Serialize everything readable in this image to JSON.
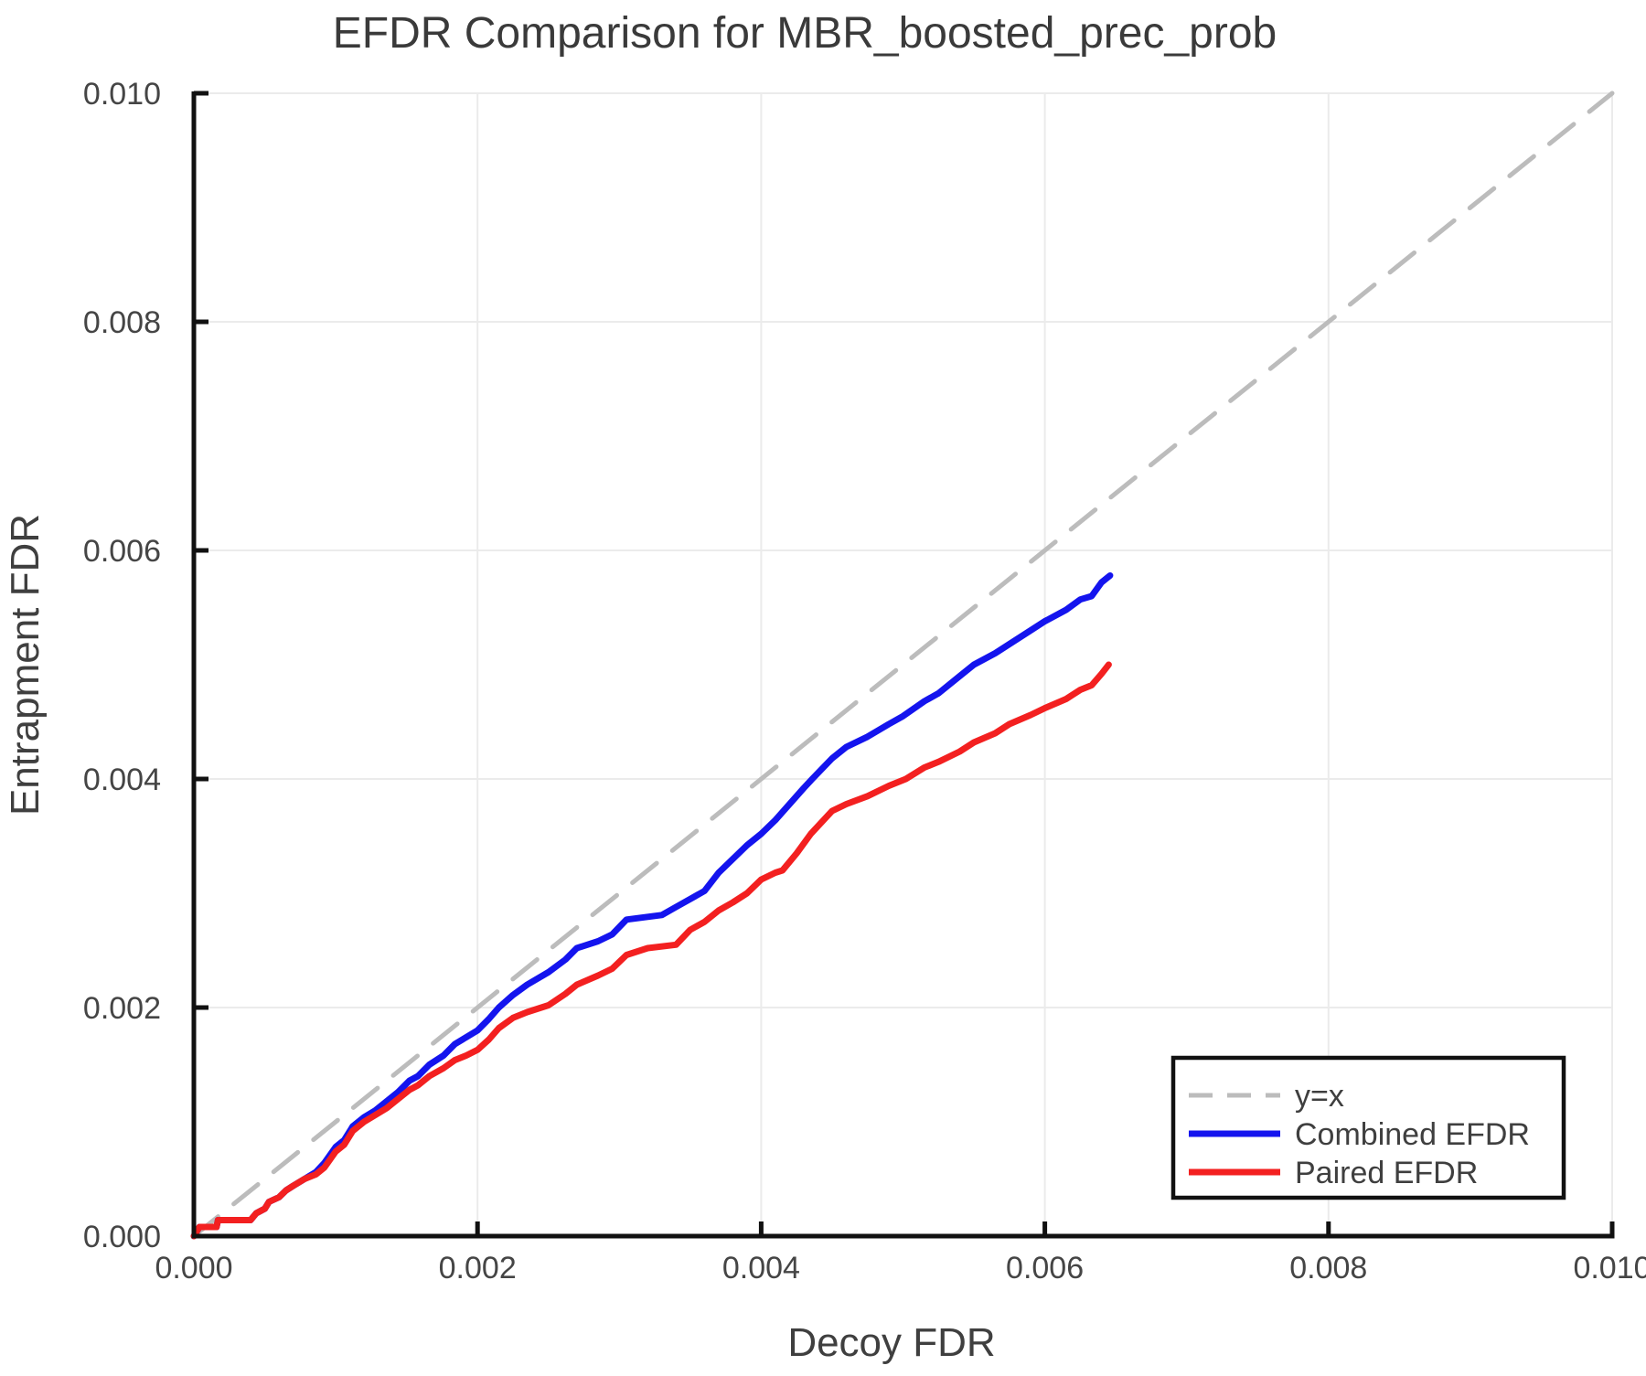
{
  "chart_data": {
    "type": "line",
    "title": "EFDR Comparison for MBR_boosted_prec_prob",
    "xlabel": "Decoy FDR",
    "ylabel": "Entrapment FDR",
    "xlim": [
      0.0,
      0.01
    ],
    "ylim": [
      0.0,
      0.01
    ],
    "x_ticks": [
      0.0,
      0.002,
      0.004,
      0.006,
      0.008,
      0.01
    ],
    "y_ticks": [
      0.0,
      0.002,
      0.004,
      0.006,
      0.008,
      0.01
    ],
    "x_tick_labels": [
      "0.000",
      "0.002",
      "0.004",
      "0.006",
      "0.008",
      "0.010"
    ],
    "y_tick_labels": [
      "0.000",
      "0.002",
      "0.004",
      "0.006",
      "0.008",
      "0.010"
    ],
    "grid": true,
    "grid_color": "#ebebeb",
    "spine_color": "#111111",
    "legend_position": "lower right",
    "series": [
      {
        "name": "y=x",
        "style": "dashed",
        "color": "#bcbcbc",
        "points": [
          [
            0.0,
            0.0
          ],
          [
            0.01,
            0.01
          ]
        ]
      },
      {
        "name": "Combined EFDR",
        "style": "solid",
        "color": "#1414ee",
        "points": [
          [
            0,
            0
          ],
          [
            4e-05,
            8e-05
          ],
          [
            0.00016,
            8e-05
          ],
          [
            0.00017,
            0.00014
          ],
          [
            0.0004,
            0.00014
          ],
          [
            0.00044,
            0.0002
          ],
          [
            0.0005,
            0.00024
          ],
          [
            0.00053,
            0.0003
          ],
          [
            0.0006,
            0.00034
          ],
          [
            0.00065,
            0.0004
          ],
          [
            0.0007,
            0.00044
          ],
          [
            0.00078,
            0.0005
          ],
          [
            0.00086,
            0.00056
          ],
          [
            0.00092,
            0.00064
          ],
          [
            0.001,
            0.00078
          ],
          [
            0.00106,
            0.00084
          ],
          [
            0.00112,
            0.00096
          ],
          [
            0.0012,
            0.00104
          ],
          [
            0.00128,
            0.0011
          ],
          [
            0.00136,
            0.00118
          ],
          [
            0.00144,
            0.00126
          ],
          [
            0.00152,
            0.00136
          ],
          [
            0.00158,
            0.0014
          ],
          [
            0.00166,
            0.0015
          ],
          [
            0.00176,
            0.00158
          ],
          [
            0.00184,
            0.00168
          ],
          [
            0.00192,
            0.00174
          ],
          [
            0.002,
            0.0018
          ],
          [
            0.00208,
            0.0019
          ],
          [
            0.00215,
            0.002
          ],
          [
            0.00225,
            0.00211
          ],
          [
            0.00235,
            0.0022
          ],
          [
            0.0025,
            0.00231
          ],
          [
            0.00262,
            0.00242
          ],
          [
            0.0027,
            0.00252
          ],
          [
            0.00285,
            0.00258
          ],
          [
            0.00295,
            0.00264
          ],
          [
            0.00305,
            0.00277
          ],
          [
            0.0033,
            0.00281
          ],
          [
            0.0034,
            0.00288
          ],
          [
            0.0035,
            0.00295
          ],
          [
            0.0036,
            0.00302
          ],
          [
            0.0037,
            0.00318
          ],
          [
            0.0038,
            0.0033
          ],
          [
            0.0039,
            0.00342
          ],
          [
            0.004,
            0.00352
          ],
          [
            0.0041,
            0.00364
          ],
          [
            0.0042,
            0.00378
          ],
          [
            0.0043,
            0.00392
          ],
          [
            0.00436,
            0.004
          ],
          [
            0.0045,
            0.00418
          ],
          [
            0.0046,
            0.00428
          ],
          [
            0.00475,
            0.00437
          ],
          [
            0.0049,
            0.00448
          ],
          [
            0.005,
            0.00455
          ],
          [
            0.00515,
            0.00468
          ],
          [
            0.00525,
            0.00475
          ],
          [
            0.0054,
            0.0049
          ],
          [
            0.0055,
            0.005
          ],
          [
            0.00565,
            0.0051
          ],
          [
            0.00575,
            0.00518
          ],
          [
            0.0059,
            0.0053
          ],
          [
            0.006,
            0.00538
          ],
          [
            0.00615,
            0.00548
          ],
          [
            0.00625,
            0.00557
          ],
          [
            0.00633,
            0.0056
          ],
          [
            0.0064,
            0.00572
          ],
          [
            0.00646,
            0.00578
          ]
        ]
      },
      {
        "name": "Paired EFDR",
        "style": "solid",
        "color": "#f32020",
        "points": [
          [
            0,
            0
          ],
          [
            4e-05,
            8e-05
          ],
          [
            0.00016,
            8e-05
          ],
          [
            0.00017,
            0.00014
          ],
          [
            0.0004,
            0.00014
          ],
          [
            0.00044,
            0.0002
          ],
          [
            0.0005,
            0.00024
          ],
          [
            0.00053,
            0.0003
          ],
          [
            0.0006,
            0.00034
          ],
          [
            0.00065,
            0.0004
          ],
          [
            0.0007,
            0.00044
          ],
          [
            0.00078,
            0.0005
          ],
          [
            0.00086,
            0.00054
          ],
          [
            0.00092,
            0.0006
          ],
          [
            0.001,
            0.00074
          ],
          [
            0.00106,
            0.0008
          ],
          [
            0.00112,
            0.00092
          ],
          [
            0.0012,
            0.001
          ],
          [
            0.00128,
            0.00106
          ],
          [
            0.00136,
            0.00112
          ],
          [
            0.00144,
            0.0012
          ],
          [
            0.00152,
            0.00128
          ],
          [
            0.00158,
            0.00132
          ],
          [
            0.00166,
            0.0014
          ],
          [
            0.00176,
            0.00147
          ],
          [
            0.00184,
            0.00154
          ],
          [
            0.00192,
            0.00158
          ],
          [
            0.002,
            0.00163
          ],
          [
            0.00208,
            0.00172
          ],
          [
            0.00215,
            0.00182
          ],
          [
            0.00225,
            0.00191
          ],
          [
            0.00235,
            0.00196
          ],
          [
            0.0025,
            0.00202
          ],
          [
            0.00262,
            0.00212
          ],
          [
            0.0027,
            0.0022
          ],
          [
            0.00285,
            0.00228
          ],
          [
            0.00295,
            0.00234
          ],
          [
            0.00305,
            0.00246
          ],
          [
            0.0032,
            0.00252
          ],
          [
            0.0034,
            0.00255
          ],
          [
            0.0035,
            0.00268
          ],
          [
            0.0036,
            0.00275
          ],
          [
            0.0037,
            0.00285
          ],
          [
            0.0038,
            0.00292
          ],
          [
            0.0039,
            0.003
          ],
          [
            0.004,
            0.00312
          ],
          [
            0.0041,
            0.00318
          ],
          [
            0.00415,
            0.0032
          ],
          [
            0.00425,
            0.00335
          ],
          [
            0.00435,
            0.00352
          ],
          [
            0.0045,
            0.00372
          ],
          [
            0.0046,
            0.00378
          ],
          [
            0.00475,
            0.00385
          ],
          [
            0.0049,
            0.00394
          ],
          [
            0.00502,
            0.004
          ],
          [
            0.00515,
            0.0041
          ],
          [
            0.00525,
            0.00415
          ],
          [
            0.0054,
            0.00424
          ],
          [
            0.0055,
            0.00432
          ],
          [
            0.00565,
            0.0044
          ],
          [
            0.00575,
            0.00448
          ],
          [
            0.0059,
            0.00456
          ],
          [
            0.006,
            0.00462
          ],
          [
            0.00615,
            0.0047
          ],
          [
            0.00625,
            0.00478
          ],
          [
            0.00633,
            0.00482
          ],
          [
            0.0064,
            0.00492
          ],
          [
            0.00645,
            0.005
          ]
        ]
      }
    ]
  }
}
